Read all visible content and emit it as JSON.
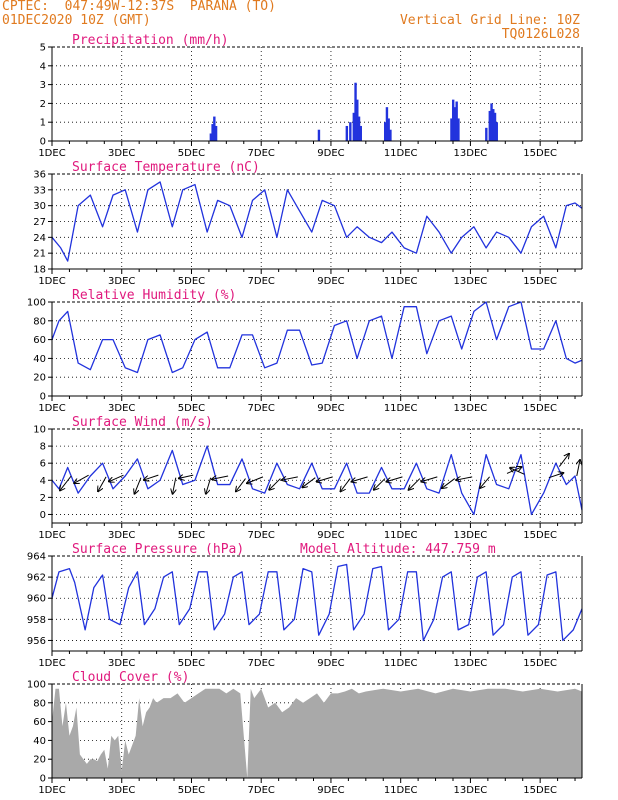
{
  "header": {
    "line1": "CPTEC:  047:49W-12:37S  PARANA (TO)",
    "line2": "01DEC2020 10Z (GMT)",
    "grid_note": "Vertical Grid Line: 10Z",
    "code": "TQ0126L028"
  },
  "colors": {
    "header": "#e07a1f",
    "title": "#e0197d",
    "line": "#2233dd",
    "bar": "#2233dd",
    "cloud": "#a9a9a9"
  },
  "x_axis": {
    "labels": [
      "1DEC",
      "3DEC",
      "5DEC",
      "7DEC",
      "9DEC",
      "11DEC",
      "13DEC",
      "15DEC"
    ],
    "day_range": [
      1,
      16.2
    ],
    "tick_step_days": 0.5
  },
  "chart_data": [
    {
      "type": "bar",
      "id": "precip",
      "title": "Precipitation (mm/h)",
      "ylim": [
        0,
        5
      ],
      "yticks": [
        0,
        1,
        2,
        3,
        4,
        5
      ],
      "x": [
        5.55,
        5.6,
        5.65,
        5.7,
        8.65,
        9.45,
        9.55,
        9.65,
        9.7,
        9.75,
        9.8,
        9.85,
        10.55,
        10.6,
        10.65,
        10.7,
        12.45,
        12.5,
        12.55,
        12.6,
        12.65,
        13.45,
        13.55,
        13.6,
        13.65,
        13.7,
        13.75
      ],
      "values": [
        0.4,
        0.9,
        1.3,
        0.8,
        0.6,
        0.8,
        1.0,
        1.5,
        3.1,
        2.2,
        1.3,
        0.8,
        1.0,
        1.8,
        1.2,
        0.6,
        1.2,
        2.2,
        1.8,
        2.1,
        1.2,
        0.7,
        1.6,
        2.0,
        1.7,
        1.5,
        1.0
      ]
    },
    {
      "type": "line",
      "id": "temp",
      "title": "Surface Temperature (nC)",
      "ylim": [
        18,
        36
      ],
      "yticks": [
        18,
        21,
        24,
        27,
        30,
        33,
        36
      ],
      "x": [
        1.0,
        1.25,
        1.45,
        1.75,
        2.1,
        2.45,
        2.75,
        3.1,
        3.45,
        3.75,
        4.1,
        4.45,
        4.75,
        5.1,
        5.45,
        5.75,
        6.1,
        6.45,
        6.75,
        7.1,
        7.45,
        7.75,
        8.1,
        8.45,
        8.75,
        9.1,
        9.45,
        9.75,
        10.1,
        10.45,
        10.75,
        11.1,
        11.45,
        11.75,
        12.1,
        12.45,
        12.75,
        13.1,
        13.45,
        13.75,
        14.1,
        14.45,
        14.75,
        15.1,
        15.45,
        15.75,
        16.0,
        16.2
      ],
      "values": [
        24,
        22,
        19.5,
        30,
        32,
        26,
        32,
        33,
        25,
        33,
        34.5,
        26,
        33,
        34,
        25,
        31,
        30,
        24,
        31,
        33,
        24,
        33,
        29,
        25,
        31,
        30,
        24,
        26,
        24,
        23,
        25,
        22,
        21,
        28,
        25,
        21,
        24,
        26,
        22,
        25,
        24,
        21,
        26,
        28,
        22,
        30,
        30.5,
        29.5
      ]
    },
    {
      "type": "line",
      "id": "rh",
      "title": "Relative Humidity (%)",
      "ylim": [
        0,
        100
      ],
      "yticks": [
        0,
        20,
        40,
        60,
        80,
        100
      ],
      "x": [
        1.0,
        1.2,
        1.45,
        1.75,
        2.1,
        2.45,
        2.75,
        3.1,
        3.45,
        3.75,
        4.1,
        4.45,
        4.75,
        5.1,
        5.45,
        5.75,
        6.1,
        6.45,
        6.75,
        7.1,
        7.45,
        7.75,
        8.1,
        8.45,
        8.75,
        9.1,
        9.45,
        9.75,
        10.1,
        10.45,
        10.75,
        11.1,
        11.45,
        11.75,
        12.1,
        12.45,
        12.75,
        13.1,
        13.45,
        13.75,
        14.1,
        14.45,
        14.75,
        15.1,
        15.45,
        15.75,
        16.0,
        16.2
      ],
      "values": [
        60,
        80,
        90,
        35,
        28,
        60,
        60,
        30,
        25,
        60,
        65,
        25,
        30,
        60,
        68,
        30,
        30,
        65,
        65,
        30,
        35,
        70,
        70,
        33,
        35,
        75,
        80,
        40,
        80,
        85,
        40,
        95,
        95,
        45,
        80,
        85,
        50,
        90,
        100,
        60,
        95,
        100,
        50,
        50,
        80,
        40,
        35,
        38
      ]
    },
    {
      "type": "line",
      "id": "wind",
      "title": "Surface Wind (m/s)",
      "ylim": [
        -1,
        10
      ],
      "yticks": [
        0,
        2,
        4,
        6,
        8,
        10
      ],
      "x": [
        1.0,
        1.2,
        1.45,
        1.75,
        2.1,
        2.45,
        2.75,
        3.1,
        3.45,
        3.75,
        4.1,
        4.45,
        4.75,
        5.1,
        5.45,
        5.75,
        6.1,
        6.45,
        6.75,
        7.1,
        7.45,
        7.75,
        8.1,
        8.45,
        8.75,
        9.1,
        9.45,
        9.75,
        10.1,
        10.45,
        10.75,
        11.1,
        11.45,
        11.75,
        12.1,
        12.45,
        12.75,
        13.1,
        13.45,
        13.75,
        14.1,
        14.45,
        14.75,
        15.1,
        15.45,
        15.75,
        16.0,
        16.2
      ],
      "values": [
        4,
        3,
        5.5,
        2.5,
        4.5,
        6,
        3,
        4.5,
        6.5,
        3,
        4,
        7.5,
        3.5,
        4,
        8,
        3.5,
        3.5,
        6.5,
        3,
        2.5,
        6,
        3.5,
        3,
        6,
        3,
        3,
        6,
        2.5,
        2.5,
        5.5,
        3,
        3,
        6,
        3,
        2.5,
        7,
        2.5,
        0,
        7,
        3.5,
        3,
        7,
        0,
        2.5,
        6,
        3.5,
        4.5,
        0.5
      ],
      "barbs": [
        {
          "x": 1.55,
          "y": 4.5,
          "u": -0.7,
          "v": -0.9
        },
        {
          "x": 2.05,
          "y": 4.6,
          "u": -0.9,
          "v": -0.5
        },
        {
          "x": 2.55,
          "y": 4.4,
          "u": -0.5,
          "v": -0.9
        },
        {
          "x": 3.05,
          "y": 4.6,
          "u": -0.9,
          "v": -0.4
        },
        {
          "x": 3.55,
          "y": 4.3,
          "u": -0.4,
          "v": -1.0
        },
        {
          "x": 4.05,
          "y": 4.6,
          "u": -0.9,
          "v": -0.3
        },
        {
          "x": 4.55,
          "y": 4.3,
          "u": -0.2,
          "v": -1.0
        },
        {
          "x": 5.05,
          "y": 4.6,
          "u": -0.9,
          "v": -0.2
        },
        {
          "x": 5.55,
          "y": 4.3,
          "u": -0.3,
          "v": -1.0
        },
        {
          "x": 6.05,
          "y": 4.5,
          "u": -1.0,
          "v": -0.2
        },
        {
          "x": 6.55,
          "y": 4.2,
          "u": -0.6,
          "v": -0.8
        },
        {
          "x": 7.05,
          "y": 4.4,
          "u": -1.0,
          "v": -0.4
        },
        {
          "x": 7.55,
          "y": 4.2,
          "u": -0.7,
          "v": -0.7
        },
        {
          "x": 8.05,
          "y": 4.4,
          "u": -1.0,
          "v": -0.2
        },
        {
          "x": 8.55,
          "y": 4.3,
          "u": -0.8,
          "v": -0.6
        },
        {
          "x": 9.05,
          "y": 4.4,
          "u": -1.0,
          "v": -0.3
        },
        {
          "x": 9.55,
          "y": 4.2,
          "u": -0.6,
          "v": -0.8
        },
        {
          "x": 10.05,
          "y": 4.4,
          "u": -1.0,
          "v": -0.3
        },
        {
          "x": 10.55,
          "y": 4.2,
          "u": -0.7,
          "v": -0.7
        },
        {
          "x": 11.05,
          "y": 4.4,
          "u": -1.0,
          "v": -0.3
        },
        {
          "x": 11.55,
          "y": 4.2,
          "u": -0.7,
          "v": -0.7
        },
        {
          "x": 12.05,
          "y": 4.4,
          "u": -1.0,
          "v": -0.3
        },
        {
          "x": 12.55,
          "y": 4.2,
          "u": -0.8,
          "v": -0.6
        },
        {
          "x": 13.05,
          "y": 4.4,
          "u": -1.0,
          "v": -0.2
        },
        {
          "x": 13.55,
          "y": 4.4,
          "u": -0.6,
          "v": -0.7
        },
        {
          "x": 14.05,
          "y": 4.8,
          "u": 0.9,
          "v": 0.4
        },
        {
          "x": 14.55,
          "y": 4.7,
          "u": -0.9,
          "v": 0.4
        },
        {
          "x": 15.25,
          "y": 4.3,
          "u": 0.9,
          "v": 0.3
        },
        {
          "x": 15.55,
          "y": 5.6,
          "u": 0.6,
          "v": 0.8
        },
        {
          "x": 16.05,
          "y": 4.5,
          "u": 0.2,
          "v": 1.0
        }
      ]
    },
    {
      "type": "line",
      "id": "pres",
      "title": "Surface Pressure (hPa)",
      "extra": "Model Altitude: 447.759 m",
      "ylim": [
        955,
        964
      ],
      "yticks": [
        956,
        958,
        960,
        962,
        964
      ],
      "x": [
        1.0,
        1.2,
        1.5,
        1.65,
        1.95,
        2.2,
        2.45,
        2.65,
        2.95,
        3.2,
        3.45,
        3.65,
        3.95,
        4.2,
        4.45,
        4.65,
        4.95,
        5.2,
        5.45,
        5.65,
        5.95,
        6.2,
        6.45,
        6.65,
        6.95,
        7.2,
        7.45,
        7.65,
        7.95,
        8.2,
        8.45,
        8.65,
        8.95,
        9.2,
        9.45,
        9.65,
        9.95,
        10.2,
        10.45,
        10.65,
        10.95,
        11.2,
        11.45,
        11.65,
        11.95,
        12.2,
        12.45,
        12.65,
        12.95,
        13.2,
        13.45,
        13.65,
        13.95,
        14.2,
        14.45,
        14.65,
        14.95,
        15.2,
        15.45,
        15.65,
        15.95,
        16.2
      ],
      "values": [
        960,
        962.5,
        962.8,
        961.5,
        957,
        961,
        962.2,
        958,
        957.5,
        961,
        962.5,
        957.5,
        959,
        962,
        962.5,
        957.5,
        959,
        962.5,
        962.5,
        957,
        958.5,
        962,
        962.5,
        957.5,
        958.5,
        962.5,
        962.5,
        957,
        958,
        962.8,
        962.5,
        956.5,
        958.5,
        963,
        963.2,
        957,
        958.5,
        962.8,
        963,
        957,
        958,
        962.5,
        962.5,
        956,
        958,
        962,
        962.5,
        957,
        957.5,
        962,
        962.5,
        956.5,
        957.5,
        962,
        962.5,
        956.5,
        957.5,
        962.2,
        962.5,
        956,
        957,
        959
      ]
    },
    {
      "type": "area",
      "id": "cloud",
      "title": "Cloud Cover (%)",
      "ylim": [
        0,
        100
      ],
      "yticks": [
        0,
        20,
        40,
        60,
        80,
        100
      ],
      "x": [
        1.0,
        1.1,
        1.2,
        1.3,
        1.4,
        1.5,
        1.6,
        1.7,
        1.8,
        1.9,
        2.0,
        2.1,
        2.2,
        2.3,
        2.4,
        2.5,
        2.6,
        2.7,
        2.8,
        2.9,
        3.0,
        3.1,
        3.2,
        3.3,
        3.4,
        3.5,
        3.6,
        3.7,
        3.8,
        3.9,
        4.0,
        4.2,
        4.4,
        4.6,
        4.8,
        5.0,
        5.2,
        5.4,
        5.6,
        5.8,
        6.0,
        6.2,
        6.4,
        6.6,
        6.7,
        6.8,
        7.0,
        7.2,
        7.4,
        7.6,
        7.8,
        8.0,
        8.2,
        8.4,
        8.6,
        8.8,
        9.0,
        9.2,
        9.4,
        9.6,
        9.8,
        10.0,
        10.5,
        11.0,
        11.5,
        12.0,
        12.5,
        13.0,
        13.5,
        14.0,
        14.5,
        15.0,
        15.5,
        16.0,
        16.2
      ],
      "values": [
        60,
        95,
        95,
        55,
        80,
        45,
        55,
        75,
        25,
        20,
        15,
        20,
        20,
        18,
        25,
        30,
        10,
        45,
        40,
        45,
        8,
        40,
        25,
        35,
        45,
        85,
        55,
        70,
        75,
        85,
        80,
        85,
        85,
        90,
        80,
        85,
        90,
        95,
        95,
        95,
        90,
        95,
        90,
        0,
        95,
        85,
        95,
        75,
        80,
        70,
        75,
        85,
        80,
        85,
        90,
        80,
        90,
        90,
        92,
        95,
        90,
        92,
        95,
        92,
        95,
        90,
        95,
        92,
        95,
        95,
        92,
        95,
        92,
        95,
        92
      ]
    }
  ]
}
